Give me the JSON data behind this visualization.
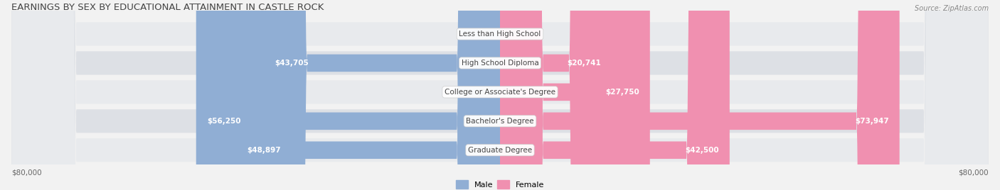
{
  "title": "EARNINGS BY SEX BY EDUCATIONAL ATTAINMENT IN CASTLE ROCK",
  "source": "Source: ZipAtlas.com",
  "categories": [
    "Less than High School",
    "High School Diploma",
    "College or Associate's Degree",
    "Bachelor's Degree",
    "Graduate Degree"
  ],
  "male_values": [
    0,
    43705,
    0,
    56250,
    48897
  ],
  "female_values": [
    0,
    20741,
    27750,
    73947,
    42500
  ],
  "male_color": "#90aed4",
  "female_color": "#f090b0",
  "male_label_color": "#5070a0",
  "female_label_color": "#c05070",
  "max_value": 80000,
  "x_label_left": "$80,000",
  "x_label_right": "$80,000",
  "legend_male": "Male",
  "legend_female": "Female",
  "bg_color": "#f0f0f0",
  "row_bg_light": "#e8e8e8",
  "row_bg_dark": "#d8d8d8",
  "title_fontsize": 10,
  "bar_label_fontsize": 8,
  "category_fontsize": 8,
  "axis_label_fontsize": 8
}
